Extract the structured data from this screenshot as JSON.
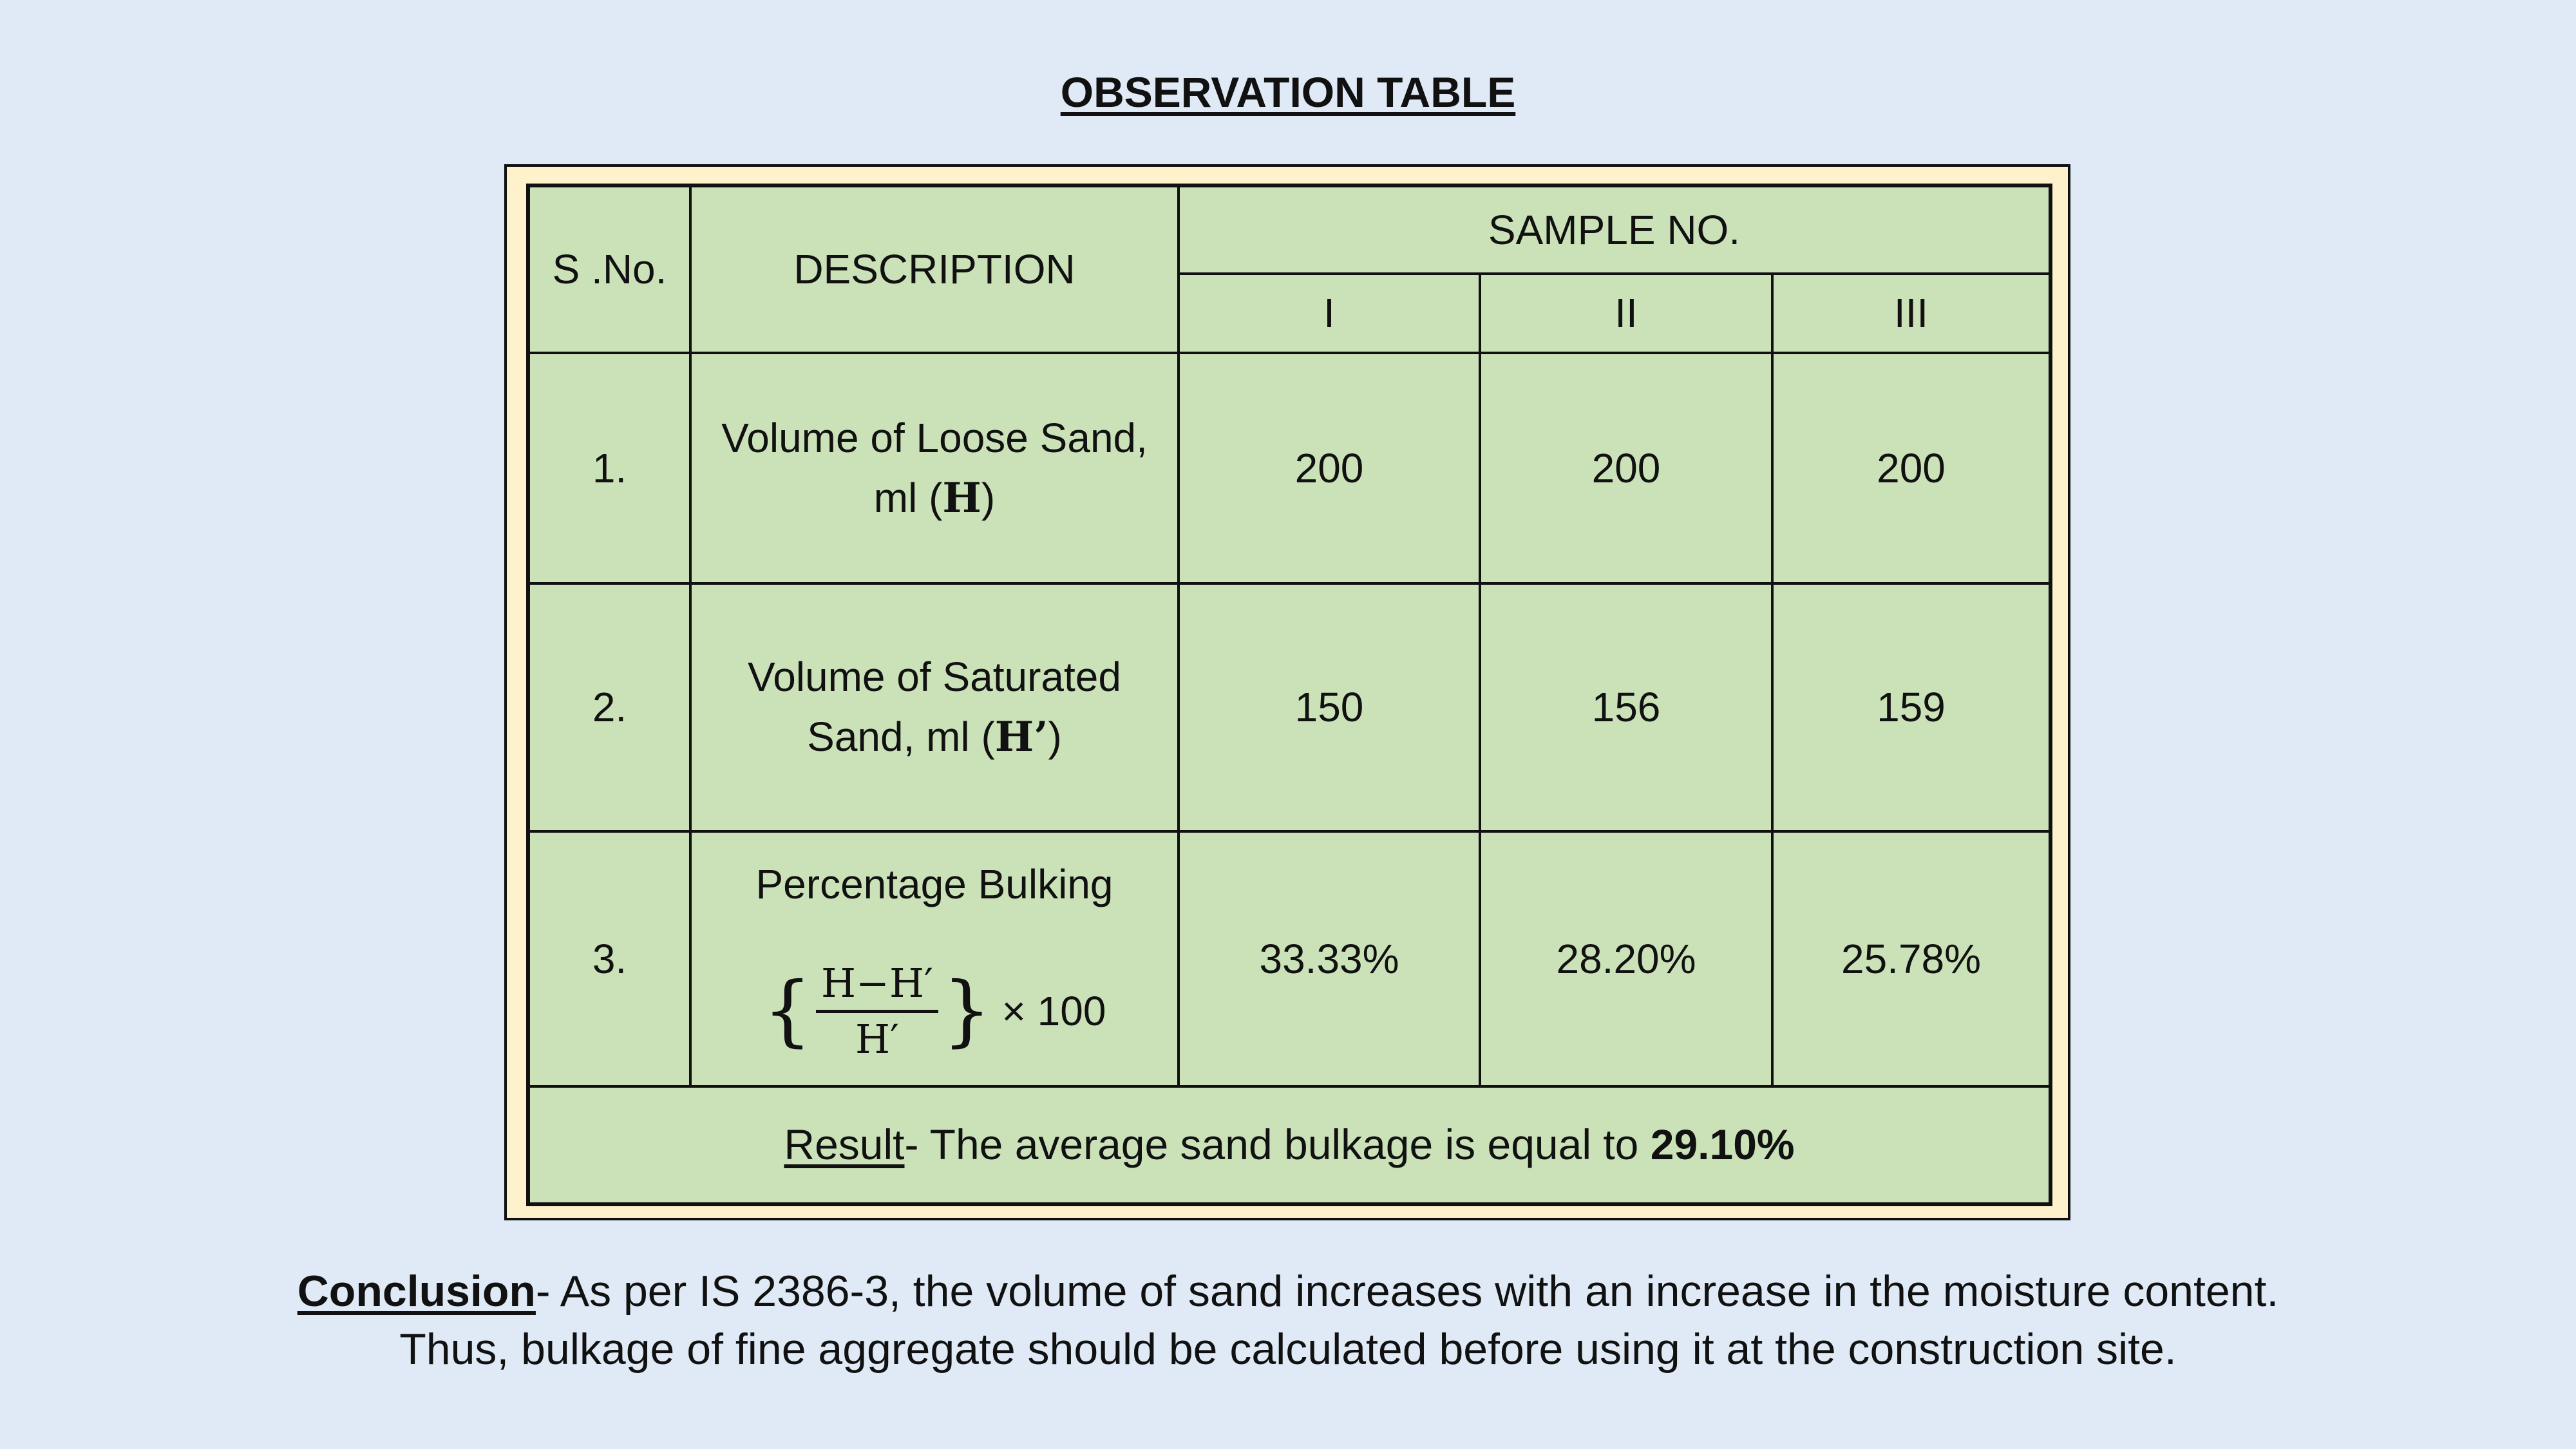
{
  "title": "OBSERVATION TABLE",
  "table": {
    "headers": {
      "sno": "S .No.",
      "description": "DESCRIPTION",
      "sample_group": "SAMPLE NO.",
      "samples": [
        "I",
        "II",
        "III"
      ]
    },
    "rows": [
      {
        "sno": "1.",
        "desc_text": "Volume of Loose Sand, ml (",
        "desc_symbol": "H",
        "desc_close": ")",
        "values": [
          "200",
          "200",
          "200"
        ]
      },
      {
        "sno": "2.",
        "desc_text": "Volume of Saturated Sand, ml (",
        "desc_symbol": "H’",
        "desc_close": ")",
        "values": [
          "150",
          "156",
          "159"
        ]
      },
      {
        "sno": "3.",
        "desc_text": "Percentage Bulking",
        "formula": {
          "open_brace": "{",
          "numerator": "H−H′",
          "denominator": "H′",
          "close_brace": "}",
          "multiplier": "× 100"
        },
        "values": [
          "33.33%",
          "28.20%",
          "25.78%"
        ]
      }
    ],
    "result": {
      "label": "Result",
      "text": "- The average sand bulkage is equal to ",
      "value": "29.10%"
    }
  },
  "conclusion": {
    "label": "Conclusion",
    "line1": "- As per IS 2386-3, the volume of sand increases with an increase in the moisture content.",
    "line2": "Thus, bulkage of fine aggregate should be calculated before using it at the construction site."
  }
}
